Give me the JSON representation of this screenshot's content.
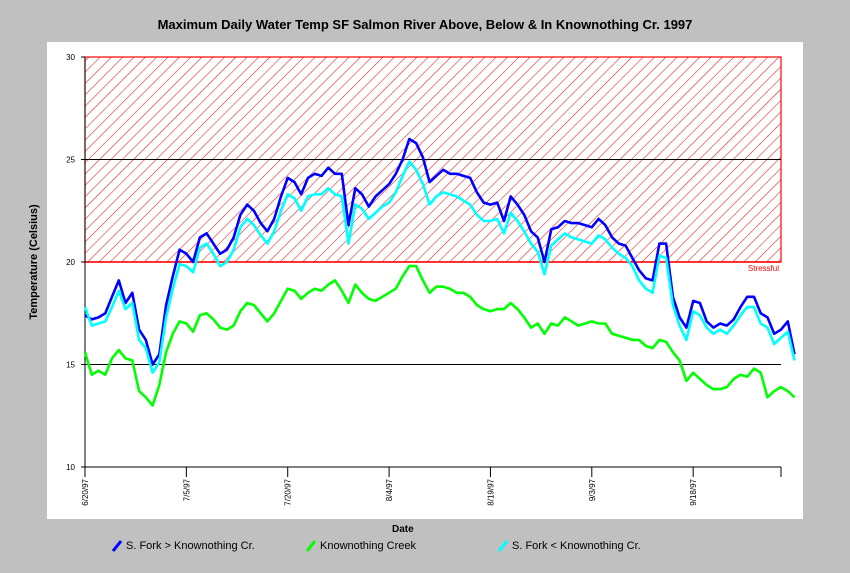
{
  "chart_data": {
    "type": "line",
    "title": "Maximum Daily Water Temp SF Salmon River Above, Below &  In Knownothing Cr. 1997",
    "xlabel": "Date",
    "ylabel": "Temperature (Celsius)",
    "ylim": [
      10,
      30
    ],
    "yticks": [
      10,
      15,
      20,
      25,
      30
    ],
    "xlim": [
      "1997-06-20",
      "1997-10-01"
    ],
    "xticks": [
      {
        "date": "1997-06-20",
        "label": "6/20/97"
      },
      {
        "date": "1997-07-05",
        "label": "7/5/97"
      },
      {
        "date": "1997-07-20",
        "label": "7/20/97"
      },
      {
        "date": "1997-08-04",
        "label": "8/4/97"
      },
      {
        "date": "1997-08-19",
        "label": "8/19/97"
      },
      {
        "date": "1997-09-03",
        "label": "9/3/97"
      },
      {
        "date": "1997-09-18",
        "label": "9/18/97"
      }
    ],
    "stress_zone": {
      "from": 20,
      "to": 30,
      "label": "Stressful",
      "color": "#ff0000"
    },
    "reference_lines": [
      15,
      25
    ],
    "grid": false,
    "legend_position": "bottom",
    "start_date": "1997-06-20",
    "series": [
      {
        "name": "S. Fork > Knownothing Cr.",
        "color": "#0000ff",
        "values": [
          17.4,
          17.2,
          17.3,
          17.5,
          18.3,
          19.1,
          18.0,
          18.5,
          16.7,
          16.2,
          15.0,
          15.5,
          17.9,
          19.3,
          20.6,
          20.4,
          20.0,
          21.2,
          21.4,
          20.9,
          20.4,
          20.6,
          21.2,
          22.3,
          22.8,
          22.5,
          21.9,
          21.5,
          22.1,
          23.2,
          24.1,
          23.9,
          23.3,
          24.1,
          24.3,
          24.2,
          24.6,
          24.3,
          24.3,
          21.8,
          23.6,
          23.3,
          22.7,
          23.2,
          23.5,
          23.8,
          24.3,
          25.0,
          26.0,
          25.8,
          25.1,
          23.9,
          24.2,
          24.5,
          24.3,
          24.3,
          24.2,
          24.1,
          23.4,
          22.9,
          22.8,
          22.9,
          22.0,
          23.2,
          22.8,
          22.3,
          21.5,
          21.2,
          20.0,
          21.6,
          21.7,
          22.0,
          21.9,
          21.9,
          21.8,
          21.7,
          22.1,
          21.8,
          21.2,
          20.9,
          20.8,
          20.2,
          19.6,
          19.2,
          19.1,
          20.9,
          20.9,
          18.3,
          17.3,
          16.8,
          18.1,
          18.0,
          17.1,
          16.8,
          17.0,
          16.9,
          17.2,
          17.8,
          18.3,
          18.3,
          17.5,
          17.3,
          16.5,
          16.7,
          17.1,
          15.5
        ]
      },
      {
        "name": "Knownothing Creek",
        "color": "#00ff00",
        "values": [
          15.6,
          14.5,
          14.7,
          14.5,
          15.3,
          15.7,
          15.3,
          15.2,
          13.7,
          13.4,
          13.0,
          14.0,
          15.6,
          16.5,
          17.1,
          17.0,
          16.6,
          17.4,
          17.5,
          17.2,
          16.8,
          16.7,
          16.9,
          17.6,
          18.0,
          17.9,
          17.5,
          17.1,
          17.5,
          18.1,
          18.7,
          18.6,
          18.2,
          18.5,
          18.7,
          18.6,
          18.9,
          19.1,
          18.6,
          18.0,
          18.9,
          18.5,
          18.2,
          18.1,
          18.3,
          18.5,
          18.7,
          19.3,
          19.8,
          19.8,
          19.1,
          18.5,
          18.8,
          18.8,
          18.7,
          18.5,
          18.5,
          18.3,
          17.9,
          17.7,
          17.6,
          17.7,
          17.7,
          18.0,
          17.7,
          17.3,
          16.8,
          17.0,
          16.5,
          17.0,
          16.9,
          17.3,
          17.1,
          16.9,
          17.0,
          17.1,
          17.0,
          17.0,
          16.5,
          16.4,
          16.3,
          16.2,
          16.2,
          15.9,
          15.8,
          16.2,
          16.1,
          15.6,
          15.2,
          14.2,
          14.6,
          14.3,
          14.0,
          13.8,
          13.8,
          13.9,
          14.3,
          14.5,
          14.4,
          14.8,
          14.6,
          13.4,
          13.7,
          13.9,
          13.7,
          13.4
        ]
      },
      {
        "name": "S. Fork < Knownothing Cr.",
        "color": "#00ffff",
        "values": [
          17.8,
          16.9,
          17.0,
          17.1,
          17.8,
          18.6,
          17.7,
          18.0,
          16.2,
          15.8,
          14.6,
          15.1,
          17.3,
          18.7,
          19.9,
          19.8,
          19.5,
          20.7,
          20.9,
          20.4,
          19.8,
          20.0,
          20.6,
          21.7,
          22.1,
          21.8,
          21.3,
          20.9,
          21.5,
          22.5,
          23.3,
          23.1,
          22.5,
          23.2,
          23.3,
          23.3,
          23.6,
          23.3,
          23.2,
          20.9,
          22.8,
          22.6,
          22.1,
          22.4,
          22.7,
          22.9,
          23.4,
          24.2,
          24.9,
          24.5,
          23.8,
          22.8,
          23.2,
          23.4,
          23.3,
          23.2,
          23.0,
          22.8,
          22.3,
          22.0,
          22.0,
          22.1,
          21.4,
          22.4,
          22.0,
          21.5,
          20.9,
          20.5,
          19.4,
          20.8,
          21.1,
          21.4,
          21.2,
          21.1,
          21.0,
          20.9,
          21.3,
          21.1,
          20.7,
          20.4,
          20.2,
          19.8,
          19.1,
          18.7,
          18.5,
          20.3,
          20.2,
          17.9,
          16.9,
          16.2,
          17.6,
          17.4,
          16.8,
          16.5,
          16.7,
          16.5,
          16.9,
          17.4,
          17.8,
          17.8,
          17.0,
          16.8,
          16.0,
          16.3,
          16.6,
          15.2
        ]
      }
    ]
  }
}
